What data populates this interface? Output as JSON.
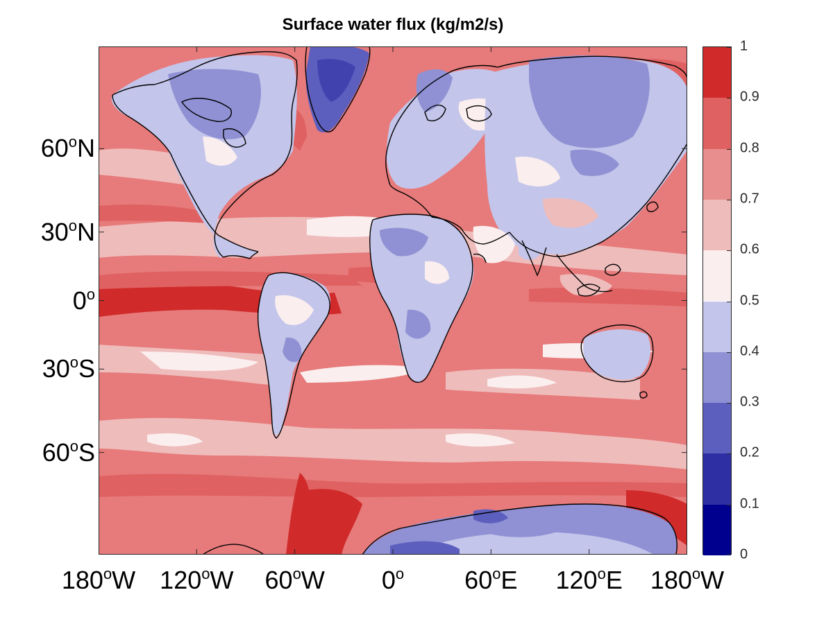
{
  "figure": {
    "title": "Surface water flux (kg/m2/s)"
  },
  "map": {
    "projection": "miller",
    "lon_range": [
      -180,
      180
    ],
    "lat_range": [
      -84,
      84
    ],
    "lat_ticks": [
      {
        "base": "60",
        "sup": "o",
        "suffix": "N",
        "lat": 60
      },
      {
        "base": "30",
        "sup": "o",
        "suffix": "N",
        "lat": 30
      },
      {
        "base": "0",
        "sup": "o",
        "suffix": "",
        "lat": 0
      },
      {
        "base": "30",
        "sup": "o",
        "suffix": "S",
        "lat": -30
      },
      {
        "base": "60",
        "sup": "o",
        "suffix": "S",
        "lat": -60
      }
    ],
    "lon_ticks": [
      {
        "base": "180",
        "sup": "o",
        "suffix": "W",
        "lon": -180
      },
      {
        "base": "120",
        "sup": "o",
        "suffix": "W",
        "lon": -120
      },
      {
        "base": "60",
        "sup": "o",
        "suffix": "W",
        "lon": -60
      },
      {
        "base": "0",
        "sup": "o",
        "suffix": "",
        "lon": 0
      },
      {
        "base": "60",
        "sup": "o",
        "suffix": "E",
        "lon": 60
      },
      {
        "base": "120",
        "sup": "o",
        "suffix": "E",
        "lon": 120
      },
      {
        "base": "180",
        "sup": "o",
        "suffix": "W",
        "lon": 180
      }
    ],
    "field": "surface water flux, filled contours",
    "pattern": "ocean values mostly 0.6-1.0 (red), peak 0.9-1.0 along equatorial Pacific and Atlantic and near Antarctic coast; land values mostly 0.2-0.6 (blue), lowest over Greenland and Antarctica"
  },
  "colorbar": {
    "ticks": [
      "0",
      "0.1",
      "0.2",
      "0.3",
      "0.4",
      "0.5",
      "0.6",
      "0.7",
      "0.8",
      "0.9",
      "1"
    ],
    "levels": [
      0,
      0.1,
      0.2,
      0.3,
      0.4,
      0.5,
      0.6,
      0.7,
      0.8,
      0.9,
      1.0
    ],
    "colors": [
      "#00008f",
      "#2e2fa3",
      "#5d5fbf",
      "#8f91d4",
      "#c3c5ea",
      "#fbeeee",
      "#efbcbc",
      "#e88e8e",
      "#e06161",
      "#d02a2a"
    ]
  }
}
